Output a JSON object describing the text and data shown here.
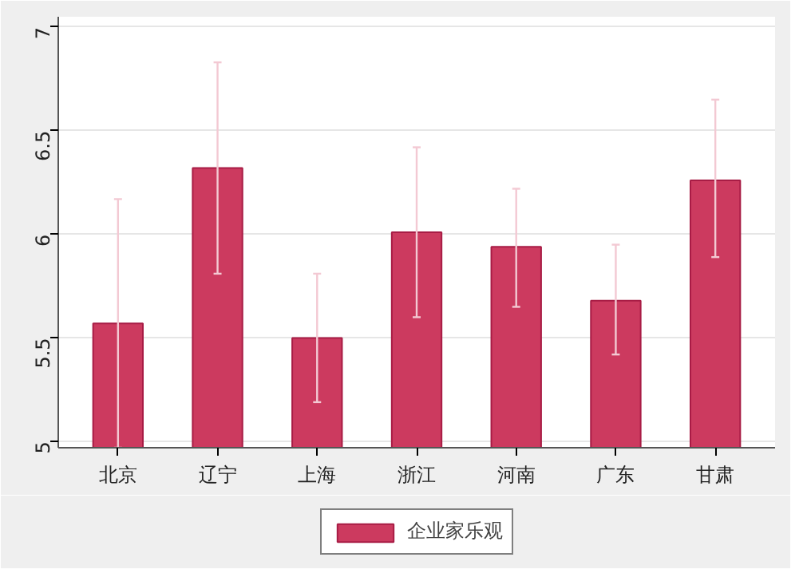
{
  "chart_data": {
    "type": "bar",
    "categories": [
      "北京",
      "辽宁",
      "上海",
      "浙江",
      "河南",
      "广东",
      "甘肃"
    ],
    "series": [
      {
        "name": "企业家乐观",
        "color": "#cc3a5f",
        "values": [
          5.57,
          6.32,
          5.5,
          6.01,
          5.94,
          5.68,
          6.26
        ],
        "errors": [
          [
            4.97,
            6.17
          ],
          [
            5.81,
            6.83
          ],
          [
            5.19,
            5.81
          ],
          [
            5.6,
            6.42
          ],
          [
            5.65,
            6.22
          ],
          [
            5.42,
            5.95
          ],
          [
            5.89,
            6.65
          ]
        ]
      }
    ],
    "ylim": [
      4.97,
      7.05
    ],
    "yticks": [
      5,
      5.5,
      6,
      6.5,
      7
    ],
    "grid": "y",
    "legend": "bottom"
  }
}
